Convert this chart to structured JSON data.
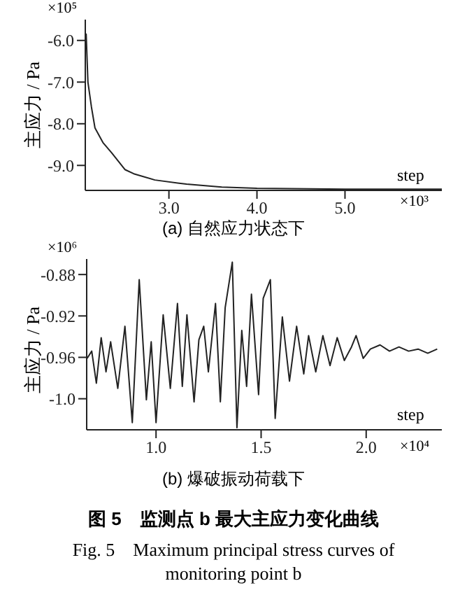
{
  "chart_data": [
    {
      "type": "line",
      "title": "(a) 自然应力状态下",
      "xlabel": "step",
      "ylabel": "主应力 / Pa",
      "annotations": [
        "×10⁵",
        "×10³"
      ],
      "x": [
        2.05,
        2.06,
        2.08,
        2.12,
        2.16,
        2.25,
        2.35,
        2.5,
        2.6,
        2.84,
        3.2,
        3.6,
        4.0,
        5.0,
        6.1
      ],
      "series": [
        {
          "color": "#222222",
          "values": [
            -6.2,
            -5.85,
            -7.0,
            -7.6,
            -8.1,
            -8.45,
            -8.7,
            -9.1,
            -9.2,
            -9.35,
            -9.45,
            -9.52,
            -9.55,
            -9.57,
            -9.57
          ]
        }
      ],
      "xlim": [
        2.05,
        6.1
      ],
      "xticks": [
        {
          "value": 3,
          "label": "3.0"
        },
        {
          "value": 4,
          "label": "4.0"
        },
        {
          "value": 5,
          "label": "5.0"
        }
      ],
      "ylim": [
        -9.6,
        -5.5
      ],
      "yticks": [
        {
          "value": -9,
          "label": "-9.0"
        },
        {
          "value": -8,
          "label": "-8.0"
        },
        {
          "value": -7,
          "label": "-7.0"
        },
        {
          "value": -6,
          "label": "-6.0"
        }
      ],
      "grid": false,
      "legend": false,
      "marker": "none",
      "line_style": "solid"
    },
    {
      "type": "line",
      "title": "(b) 爆破振动荷载下",
      "xlabel": "step",
      "ylabel": "主应力 / Pa",
      "annotations": [
        "×10⁶",
        "×10⁴",
        "图 5　监测点 b 最大主应力变化曲线",
        "Fig. 5　Maximum principal stress curves of monitoring point b"
      ],
      "x": [
        0.672,
        0.694,
        0.716,
        0.739,
        0.762,
        0.784,
        0.818,
        0.852,
        0.887,
        0.92,
        0.954,
        0.977,
        1.0,
        1.034,
        1.068,
        1.102,
        1.125,
        1.147,
        1.181,
        1.204,
        1.227,
        1.249,
        1.283,
        1.306,
        1.329,
        1.363,
        1.385,
        1.408,
        1.431,
        1.454,
        1.488,
        1.51,
        1.544,
        1.567,
        1.601,
        1.635,
        1.669,
        1.703,
        1.726,
        1.76,
        1.794,
        1.828,
        1.862,
        1.896,
        1.93,
        1.952,
        1.986,
        2.02,
        2.066,
        2.111,
        2.156,
        2.202,
        2.247,
        2.293,
        2.338
      ],
      "series": [
        {
          "color": "#222222",
          "values": [
            -0.961,
            -0.954,
            -0.985,
            -0.941,
            -0.974,
            -0.945,
            -0.99,
            -0.93,
            -1.023,
            -0.885,
            -1.001,
            -0.945,
            -1.023,
            -0.919,
            -0.99,
            -0.908,
            -0.988,
            -0.919,
            -1.003,
            -0.943,
            -0.93,
            -0.974,
            -0.908,
            -1.003,
            -0.912,
            -0.868,
            -1.028,
            -0.934,
            -0.988,
            -0.899,
            -0.996,
            -0.903,
            -0.885,
            -1.019,
            -0.921,
            -0.983,
            -0.93,
            -0.976,
            -0.939,
            -0.974,
            -0.939,
            -0.968,
            -0.941,
            -0.963,
            -0.95,
            -0.939,
            -0.961,
            -0.952,
            -0.948,
            -0.954,
            -0.95,
            -0.954,
            -0.952,
            -0.956,
            -0.952
          ]
        }
      ],
      "xlim": [
        0.67,
        2.36
      ],
      "xticks": [
        {
          "value": 1,
          "label": "1.0"
        },
        1.5,
        {
          "value": 2,
          "label": "2.0"
        }
      ],
      "ylim": [
        -1.03,
        -0.865
      ],
      "yticks": [
        {
          "value": -1,
          "label": "-1.0"
        },
        -0.96,
        -0.92,
        -0.88
      ],
      "grid": false,
      "legend": false,
      "marker": "none",
      "line_style": "solid"
    }
  ]
}
